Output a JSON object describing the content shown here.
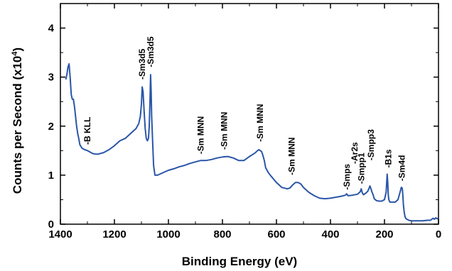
{
  "chart_data": {
    "type": "line",
    "title": "",
    "xlabel": "Binding Energy (eV)",
    "ylabel": "Counts per Second (x10",
    "ylabel_sup": "4",
    "ylabel_close": ")",
    "xlim": [
      1400,
      0
    ],
    "ylim": [
      0,
      4.5
    ],
    "x_ticks": [
      1400,
      1200,
      1000,
      800,
      600,
      400,
      200,
      0
    ],
    "y_ticks": [
      0,
      1,
      2,
      3,
      4
    ],
    "grid": false,
    "line_color": "#2a56a8",
    "series": [
      {
        "x": [
          1380,
          1376,
          1372,
          1368,
          1364,
          1360,
          1356,
          1352,
          1348,
          1344,
          1340,
          1336,
          1332,
          1328,
          1320,
          1310,
          1300,
          1290,
          1280,
          1270,
          1260,
          1240,
          1220,
          1200,
          1180,
          1160,
          1140,
          1120,
          1110,
          1104,
          1100,
          1097,
          1094,
          1090,
          1086,
          1082,
          1078,
          1074,
          1071,
          1068,
          1066,
          1064,
          1062,
          1058,
          1055,
          1050,
          1040,
          1020,
          1000,
          980,
          960,
          940,
          920,
          900,
          880,
          860,
          840,
          820,
          800,
          780,
          760,
          740,
          720,
          700,
          680,
          670,
          665,
          660,
          655,
          650,
          645,
          640,
          630,
          620,
          600,
          580,
          560,
          550,
          540,
          530,
          520,
          510,
          500,
          480,
          460,
          440,
          420,
          400,
          380,
          360,
          345,
          340,
          335,
          320,
          300,
          290,
          286,
          282,
          278,
          270,
          262,
          258,
          254,
          250,
          246,
          242,
          238,
          230,
          220,
          210,
          200,
          194,
          190,
          188,
          186,
          184,
          180,
          170,
          160,
          150,
          145,
          140,
          138,
          136,
          134,
          132,
          130,
          127,
          124,
          120,
          110,
          100,
          80,
          60,
          40,
          30,
          25,
          20,
          15,
          10,
          5,
          2
        ],
        "y": [
          2.95,
          3.05,
          3.2,
          3.27,
          3.0,
          2.65,
          2.55,
          2.55,
          2.4,
          2.2,
          2.0,
          1.85,
          1.75,
          1.62,
          1.55,
          1.52,
          1.5,
          1.47,
          1.44,
          1.43,
          1.43,
          1.46,
          1.52,
          1.6,
          1.7,
          1.75,
          1.85,
          1.95,
          2.05,
          2.2,
          2.45,
          2.8,
          2.7,
          2.3,
          1.95,
          1.75,
          1.7,
          1.75,
          2.0,
          2.6,
          3.05,
          2.7,
          2.2,
          1.6,
          1.2,
          1.0,
          1.0,
          1.05,
          1.1,
          1.13,
          1.17,
          1.2,
          1.24,
          1.27,
          1.3,
          1.3,
          1.32,
          1.35,
          1.37,
          1.38,
          1.35,
          1.3,
          1.3,
          1.38,
          1.45,
          1.5,
          1.52,
          1.5,
          1.48,
          1.4,
          1.3,
          1.15,
          1.05,
          0.98,
          0.85,
          0.75,
          0.72,
          0.74,
          0.8,
          0.85,
          0.85,
          0.82,
          0.75,
          0.65,
          0.58,
          0.53,
          0.52,
          0.53,
          0.55,
          0.57,
          0.59,
          0.62,
          0.58,
          0.59,
          0.61,
          0.66,
          0.72,
          0.64,
          0.6,
          0.63,
          0.67,
          0.72,
          0.78,
          0.72,
          0.65,
          0.6,
          0.52,
          0.48,
          0.47,
          0.47,
          0.5,
          0.65,
          1.02,
          0.85,
          0.6,
          0.5,
          0.45,
          0.45,
          0.45,
          0.5,
          0.6,
          0.7,
          0.75,
          0.75,
          0.72,
          0.6,
          0.4,
          0.25,
          0.15,
          0.11,
          0.08,
          0.07,
          0.07,
          0.07,
          0.08,
          0.08,
          0.1,
          0.12,
          0.1,
          0.13,
          0.11,
          0.12
        ]
      }
    ],
    "annotations": [
      {
        "text": "-B KLL",
        "x": 1300,
        "y": 1.62
      },
      {
        "text": "-Sm3d5",
        "x": 1097,
        "y": 2.95
      },
      {
        "text": "-Sm3d5",
        "x": 1066,
        "y": 3.2
      },
      {
        "text": "-Sm MNN",
        "x": 880,
        "y": 1.43
      },
      {
        "text": "-Sm MNN",
        "x": 794,
        "y": 1.52
      },
      {
        "text": "-Sm MNN",
        "x": 660,
        "y": 1.68
      },
      {
        "text": "-Sm MNN",
        "x": 543,
        "y": 1.0
      },
      {
        "text": "-Smps",
        "x": 340,
        "y": 0.7
      },
      {
        "text": "-Smpp1",
        "x": 286,
        "y": 0.82
      },
      {
        "text": "-Ar2s",
        "x": 310,
        "y": 1.23
      },
      {
        "text": "-Smpp3",
        "x": 250,
        "y": 1.3
      },
      {
        "text": "-B1s",
        "x": 186,
        "y": 1.15
      },
      {
        "text": "-Sm4d",
        "x": 136,
        "y": 0.88
      }
    ]
  }
}
